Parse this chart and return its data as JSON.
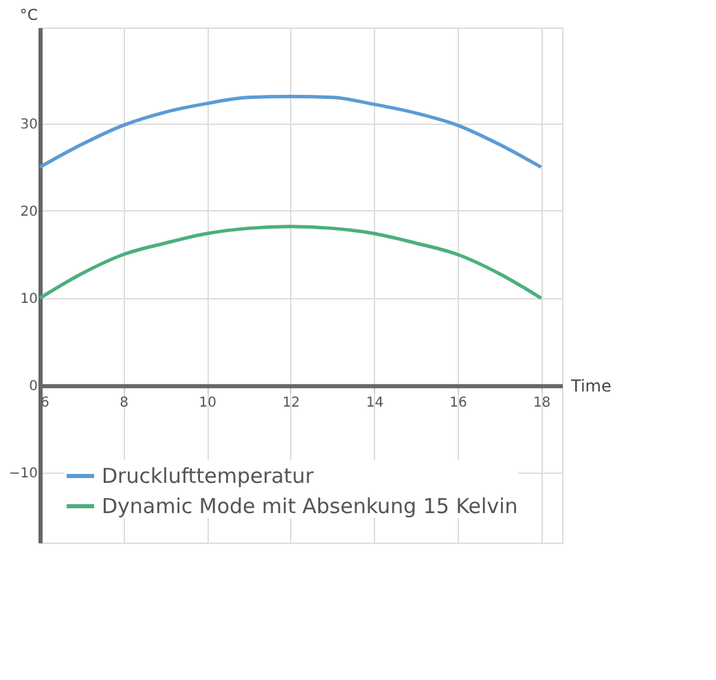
{
  "chart_data": {
    "type": "line",
    "xlabel": "Time",
    "ylabel": "°C",
    "x": [
      6,
      7,
      8,
      9,
      10,
      11,
      12,
      13,
      14,
      15,
      16,
      17,
      18
    ],
    "series": [
      {
        "name": "Drucklufttemperatur",
        "color": "#5b9bd5",
        "values": [
          25,
          27.6,
          29.8,
          31.3,
          32.3,
          33,
          33.1,
          33,
          32.2,
          31.2,
          29.8,
          27.6,
          25
        ]
      },
      {
        "name": "Dynamic Mode mit Absenkung 15 Kelvin",
        "color": "#4caf7d",
        "values": [
          10,
          12.8,
          15,
          16.3,
          17.4,
          18,
          18.2,
          18,
          17.4,
          16.3,
          15,
          12.8,
          10
        ]
      }
    ],
    "xlim": [
      6,
      18.5
    ],
    "ylim": [
      -18,
      41
    ],
    "xticks": [
      6,
      8,
      10,
      12,
      14,
      16,
      18
    ],
    "yticks": [
      -10,
      0,
      10,
      20,
      30
    ],
    "grid": true,
    "legend": "bottom left",
    "marker": "none",
    "line_style": "solid"
  }
}
